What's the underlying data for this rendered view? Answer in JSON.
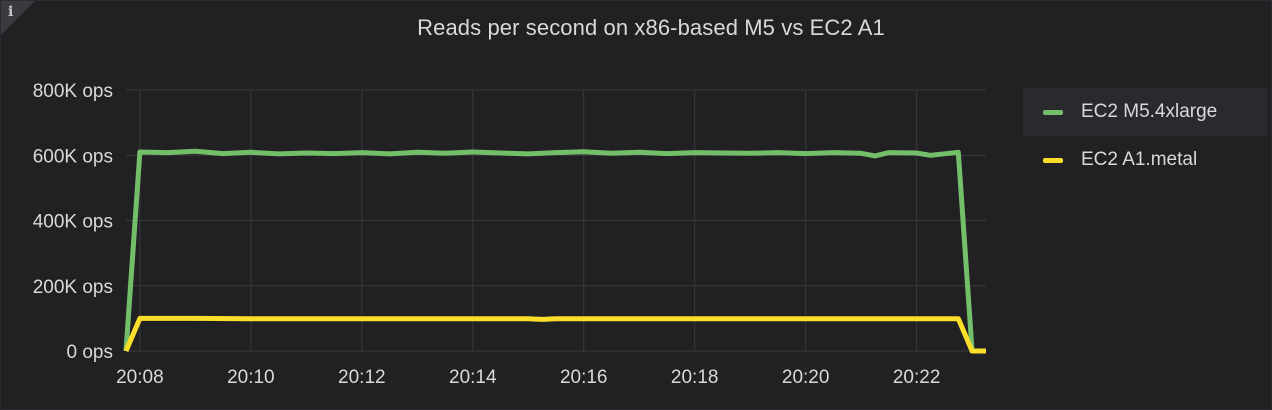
{
  "panel": {
    "title": "Reads per second on x86-based M5 vs EC2 A1",
    "info_glyph": "i"
  },
  "colors": {
    "background": "#212124",
    "grid": "#3a3a3d",
    "text": "#d8d9da"
  },
  "chart_data": {
    "type": "line",
    "title": "Reads per second on x86-based M5 vs EC2 A1",
    "xlabel": "",
    "ylabel": "",
    "x_unit": "time",
    "x_range": [
      "20:07:45",
      "20:23:15"
    ],
    "x_ticks": [
      "20:08",
      "20:10",
      "20:12",
      "20:14",
      "20:16",
      "20:18",
      "20:20",
      "20:22"
    ],
    "y_ticks": [
      "0 ops",
      "200K ops",
      "400K ops",
      "600K ops",
      "800K ops"
    ],
    "ylim": [
      0,
      800000
    ],
    "grid": true,
    "legend": "right",
    "series": [
      {
        "name": "EC2 M5.4xlarge",
        "color": "#73bf69",
        "points": [
          [
            "20:07:45",
            0
          ],
          [
            "20:08:00",
            610000
          ],
          [
            "20:08:30",
            608000
          ],
          [
            "20:09:00",
            612000
          ],
          [
            "20:09:30",
            605000
          ],
          [
            "20:10:00",
            609000
          ],
          [
            "20:10:30",
            604000
          ],
          [
            "20:11:00",
            607000
          ],
          [
            "20:11:30",
            605000
          ],
          [
            "20:12:00",
            608000
          ],
          [
            "20:12:30",
            604000
          ],
          [
            "20:13:00",
            609000
          ],
          [
            "20:13:30",
            606000
          ],
          [
            "20:14:00",
            610000
          ],
          [
            "20:14:30",
            607000
          ],
          [
            "20:15:00",
            604000
          ],
          [
            "20:15:30",
            608000
          ],
          [
            "20:16:00",
            611000
          ],
          [
            "20:16:30",
            606000
          ],
          [
            "20:17:00",
            609000
          ],
          [
            "20:17:30",
            605000
          ],
          [
            "20:18:00",
            608000
          ],
          [
            "20:18:30",
            607000
          ],
          [
            "20:19:00",
            606000
          ],
          [
            "20:19:30",
            608000
          ],
          [
            "20:20:00",
            605000
          ],
          [
            "20:20:30",
            608000
          ],
          [
            "20:21:00",
            606000
          ],
          [
            "20:21:15",
            598000
          ],
          [
            "20:21:30",
            608000
          ],
          [
            "20:22:00",
            607000
          ],
          [
            "20:22:15",
            600000
          ],
          [
            "20:22:45",
            609000
          ],
          [
            "20:23:00",
            0
          ],
          [
            "20:23:15",
            0
          ]
        ]
      },
      {
        "name": "EC2 A1.metal",
        "color": "#fade2a",
        "points": [
          [
            "20:07:45",
            0
          ],
          [
            "20:08:00",
            100000
          ],
          [
            "20:09:00",
            100000
          ],
          [
            "20:10:00",
            99000
          ],
          [
            "20:11:00",
            99000
          ],
          [
            "20:12:00",
            99000
          ],
          [
            "20:13:00",
            99000
          ],
          [
            "20:14:00",
            99000
          ],
          [
            "20:15:00",
            99000
          ],
          [
            "20:15:15",
            97000
          ],
          [
            "20:15:30",
            99000
          ],
          [
            "20:16:00",
            99000
          ],
          [
            "20:17:00",
            99000
          ],
          [
            "20:18:00",
            99000
          ],
          [
            "20:19:00",
            99000
          ],
          [
            "20:20:00",
            99000
          ],
          [
            "20:21:00",
            99000
          ],
          [
            "20:22:00",
            99000
          ],
          [
            "20:22:45",
            99000
          ],
          [
            "20:23:00",
            0
          ],
          [
            "20:23:15",
            0
          ]
        ]
      }
    ]
  }
}
